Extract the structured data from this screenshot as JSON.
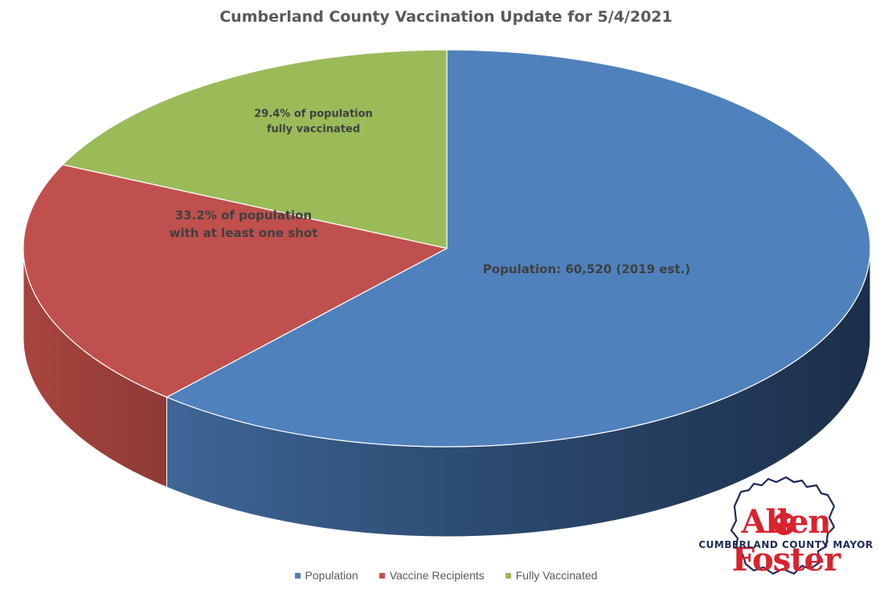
{
  "chart_data": {
    "type": "pie",
    "title": "Cumberland County Vaccination Update for 5/4/2021",
    "style": "3d",
    "categories": [
      "Population",
      "Vaccine Recipients",
      "Fully Vaccinated"
    ],
    "values": [
      60520,
      20093,
      17793
    ],
    "labels": [
      "Population: 60,520 (2019 est.)",
      "33.2% of population with at least one shot",
      "29.4% of population fully vaccinated"
    ],
    "colors": [
      "#4f81bd",
      "#c0504d",
      "#9bbb59"
    ],
    "legend_position": "bottom"
  },
  "logo": {
    "name": "Allen Foster",
    "subtitle": "CUMBERLAND COUNTY MAYOR",
    "name_color": "#d9232e",
    "subtitle_color": "#1f2a5a"
  }
}
